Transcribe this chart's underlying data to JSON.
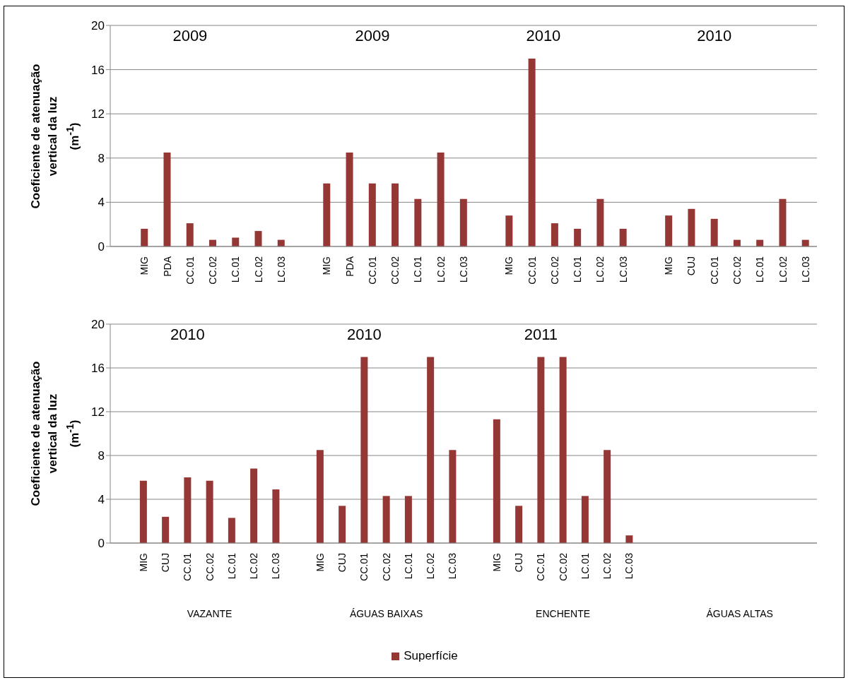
{
  "chart_data": [
    {
      "type": "bar",
      "ylabel": "Coeficiente de atenuação vertical da luz (m$^{-1}$)",
      "categories": [
        null,
        "MIG",
        "PDA",
        "CC.01",
        "CC.02",
        "LC.01",
        "LC.02",
        "LC.03",
        null,
        "MIG",
        "PDA",
        "CC.01",
        "CC.02",
        "LC.01",
        "LC.02",
        "LC.03",
        null,
        "MIG",
        "CC.01",
        "CC.02",
        "LC.01",
        "LC.02",
        "LC.03",
        null,
        "MIG",
        "CUJ",
        "CC.01",
        "CC.02",
        "LC.01",
        "LC.02",
        "LC.03"
      ],
      "series": [
        {
          "color": "#953735",
          "values": [
            null,
            1.6,
            8.5,
            2.1,
            0.6,
            0.8,
            1.4,
            0.6,
            null,
            5.7,
            8.5,
            5.7,
            5.7,
            4.3,
            8.5,
            4.3,
            null,
            2.8,
            17,
            2.1,
            1.6,
            4.3,
            1.6,
            null,
            2.8,
            3.4,
            2.5,
            0.6,
            0.6,
            4.3,
            0.6
          ]
        }
      ],
      "ylim": [
        0,
        20
      ],
      "yticks": [
        0,
        4,
        8,
        12,
        16,
        20
      ],
      "grid": "y",
      "annotations": [
        "2009",
        "2009",
        "2010",
        "2010"
      ]
    },
    {
      "type": "bar",
      "ylabel": "Coeficiente de atenuação vertical da luz (m$^{-1}$)",
      "categories": [
        null,
        "MIG",
        "CUJ",
        "CC.01",
        "CC.02",
        "LC.01",
        "LC.02",
        "LC.03",
        null,
        "MIG",
        "CUJ",
        "CC.01",
        "CC.02",
        "LC.01",
        "LC.02",
        "LC.03",
        null,
        "MIG",
        "CUJ",
        "CC.01",
        "CC.02",
        "LC.01",
        "LC.02",
        "LC.03",
        null,
        null,
        null,
        null,
        null,
        null,
        null,
        null
      ],
      "series": [
        {
          "name": "Superfície",
          "color": "#953735",
          "values": [
            null,
            5.7,
            2.4,
            6.0,
            5.7,
            2.3,
            6.8,
            4.9,
            null,
            8.5,
            3.4,
            17,
            4.3,
            4.3,
            17,
            8.5,
            null,
            11.3,
            3.4,
            17,
            17,
            4.3,
            8.5,
            0.7,
            null,
            null,
            null,
            null,
            null,
            null,
            null,
            null
          ]
        }
      ],
      "ylim": [
        0,
        20
      ],
      "yticks": [
        0,
        4,
        8,
        12,
        16,
        20
      ],
      "grid": "y",
      "legend": "bottom",
      "annotations": [
        "2010",
        "2010",
        "2011",
        "VAZANTE",
        "ÁGUAS BAIXAS",
        "ENCHENTE",
        "ÁGUAS ALTAS"
      ]
    }
  ]
}
